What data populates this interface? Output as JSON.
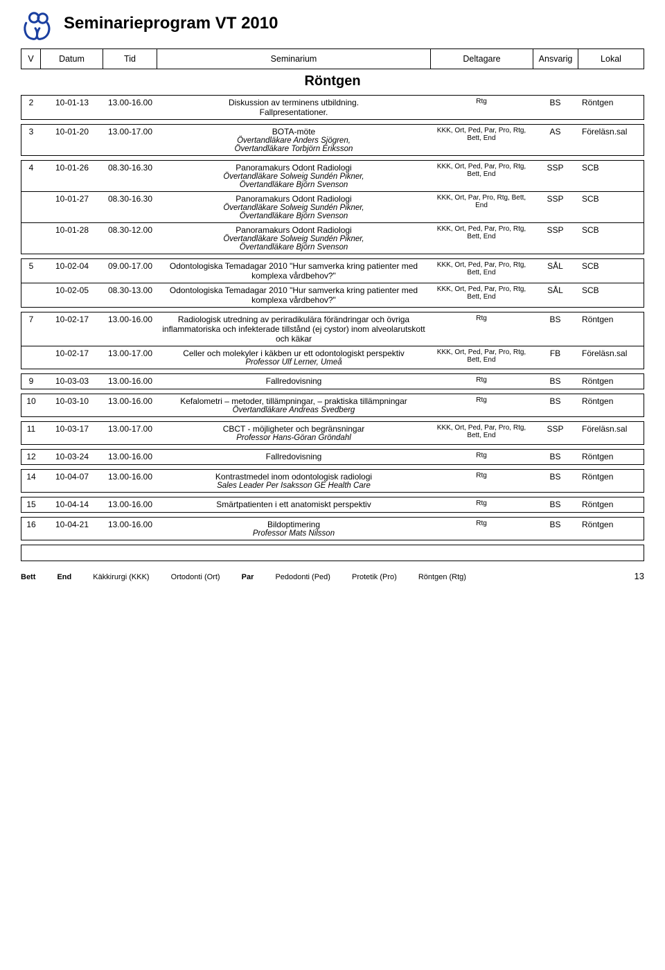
{
  "page_title": "Seminarieprogram VT 2010",
  "section_title": "Röntgen",
  "columns": {
    "v": "V",
    "datum": "Datum",
    "tid": "Tid",
    "sem": "Seminarium",
    "del": "Deltagare",
    "ans": "Ansvarig",
    "lok": "Lokal"
  },
  "blocks": [
    {
      "rows": [
        {
          "v": "2",
          "date": "10-01-13",
          "tid": "13.00-16.00",
          "sem": "Diskussion av terminens utbildning.\nFallpresentationer.",
          "del": "Rtg",
          "ans": "BS",
          "lok": "Röntgen"
        }
      ]
    },
    {
      "rows": [
        {
          "v": "3",
          "date": "10-01-20",
          "tid": "13.00-17.00",
          "sem": "BOTA-möte",
          "sub": "Övertandläkare Anders Sjögren,\nÖvertandläkare Torbjörn Eriksson",
          "del": "KKK, Ort, Ped, Par, Pro, Rtg, Bett, End",
          "ans": "AS",
          "lok": "Föreläsn.sal"
        }
      ]
    },
    {
      "rows": [
        {
          "v": "4",
          "date": "10-01-26",
          "tid": "08.30-16.30",
          "sem": "Panoramakurs Odont Radiologi",
          "sub": "Övertandläkare Solweig Sundén Pikner,\nÖvertandläkare Björn Svenson",
          "del": "KKK, Ort, Ped, Par, Pro, Rtg, Bett, End",
          "ans": "SSP",
          "lok": "SCB"
        },
        {
          "v": "",
          "date": "10-01-27",
          "tid": "08.30-16.30",
          "sem": "Panoramakurs Odont Radiologi",
          "sub": "Övertandläkare Solweig Sundén Pikner,\nÖvertandläkare Björn Svenson",
          "del": "KKK, Ort, Par, Pro, Rtg, Bett, End",
          "ans": "SSP",
          "lok": "SCB"
        },
        {
          "v": "",
          "date": "10-01-28",
          "tid": "08.30-12.00",
          "sem": "Panoramakurs Odont Radiologi",
          "sub": "Övertandläkare Solweig Sundén Pikner,\nÖvertandläkare Björn Svenson",
          "del": "KKK, Ort, Ped, Par, Pro, Rtg, Bett, End",
          "ans": "SSP",
          "lok": "SCB"
        }
      ]
    },
    {
      "rows": [
        {
          "v": "5",
          "date": "10-02-04",
          "tid": "09.00-17.00",
          "sem": "Odontologiska Temadagar 2010 \"Hur samverka kring patienter med komplexa vårdbehov?\"",
          "del": "KKK, Ort, Ped, Par, Pro, Rtg, Bett, End",
          "ans": "SÅL",
          "lok": "SCB"
        },
        {
          "v": "",
          "date": "10-02-05",
          "tid": "08.30-13.00",
          "sem": "Odontologiska Temadagar 2010 \"Hur samverka kring patienter med komplexa vårdbehov?\"",
          "del": "KKK, Ort, Ped, Par, Pro, Rtg, Bett, End",
          "ans": "SÅL",
          "lok": "SCB"
        }
      ]
    },
    {
      "rows": [
        {
          "v": "7",
          "date": "10-02-17",
          "tid": "13.00-16.00",
          "sem": "Radiologisk utredning av periradikulära förändringar och övriga inflammatoriska och infekterade tillstånd (ej cystor) inom alveolarutskott och käkar",
          "del": "Rtg",
          "ans": "BS",
          "lok": "Röntgen"
        },
        {
          "v": "",
          "date": "10-02-17",
          "tid": "13.00-17.00",
          "sem": "Celler och molekyler i käkben ur ett odontologiskt perspektiv",
          "sub": "Professor Ulf Lerner, Umeå",
          "del": "KKK, Ort, Ped, Par, Pro, Rtg, Bett, End",
          "ans": "FB",
          "lok": "Föreläsn.sal"
        }
      ]
    },
    {
      "rows": [
        {
          "v": "9",
          "date": "10-03-03",
          "tid": "13.00-16.00",
          "sem": "Fallredovisning",
          "del": "Rtg",
          "ans": "BS",
          "lok": "Röntgen"
        }
      ]
    },
    {
      "rows": [
        {
          "v": "10",
          "date": "10-03-10",
          "tid": "13.00-16.00",
          "sem": "Kefalometri – metoder, tillämpningar, – praktiska tillämpningar",
          "sub": "Övertandläkare Andreas Svedberg",
          "del": "Rtg",
          "ans": "BS",
          "lok": "Röntgen"
        }
      ]
    },
    {
      "rows": [
        {
          "v": "11",
          "date": "10-03-17",
          "tid": "13.00-17.00",
          "sem": "CBCT - möjligheter och begränsningar",
          "sub": "Professor Hans-Göran Gröndahl",
          "del": "KKK, Ort, Ped, Par, Pro, Rtg, Bett, End",
          "ans": "SSP",
          "lok": "Föreläsn.sal"
        }
      ]
    },
    {
      "rows": [
        {
          "v": "12",
          "date": "10-03-24",
          "tid": "13.00-16.00",
          "sem": "Fallredovisning",
          "del": "Rtg",
          "ans": "BS",
          "lok": "Röntgen"
        }
      ]
    },
    {
      "rows": [
        {
          "v": "14",
          "date": "10-04-07",
          "tid": "13.00-16.00",
          "sem": "Kontrastmedel inom odontologisk radiologi",
          "sub": "Sales Leader Per Isaksson GE Health Care",
          "del": "Rtg",
          "ans": "BS",
          "lok": "Röntgen"
        }
      ]
    },
    {
      "rows": [
        {
          "v": "15",
          "date": "10-04-14",
          "tid": "13.00-16.00",
          "sem": "Smärtpatienten i ett anatomiskt perspektiv",
          "del": "Rtg",
          "ans": "BS",
          "lok": "Röntgen"
        }
      ]
    },
    {
      "rows": [
        {
          "v": "16",
          "date": "10-04-21",
          "tid": "13.00-16.00",
          "sem": "Bildoptimering",
          "sub": "Professor Mats Nilsson",
          "del": "Rtg",
          "ans": "BS",
          "lok": "Röntgen"
        }
      ]
    }
  ],
  "legend": [
    {
      "b": "Bett",
      "t": ""
    },
    {
      "b": "End",
      "t": ""
    },
    {
      "b": "",
      "t": "Käkkirurgi (KKK)"
    },
    {
      "b": "",
      "t": "Ortodonti (Ort)"
    },
    {
      "b": "Par",
      "t": ""
    },
    {
      "b": "",
      "t": "Pedodonti (Ped)"
    },
    {
      "b": "",
      "t": "Protetik (Pro)"
    },
    {
      "b": "",
      "t": "Röntgen (Rtg)"
    }
  ],
  "page_number": "13"
}
